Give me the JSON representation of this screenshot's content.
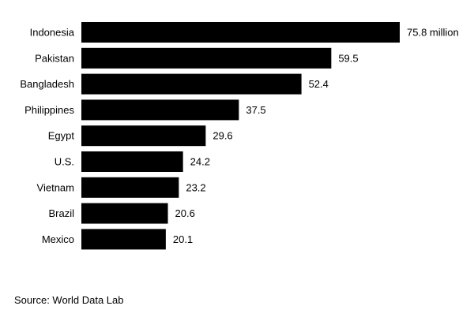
{
  "chart_data": {
    "type": "bar",
    "orientation": "horizontal",
    "categories": [
      "Indonesia",
      "Pakistan",
      "Bangladesh",
      "Philippines",
      "Egypt",
      "U.S.",
      "Vietnam",
      "Brazil",
      "Mexico"
    ],
    "values": [
      75.8,
      59.5,
      52.4,
      37.5,
      29.6,
      24.2,
      23.2,
      20.6,
      20.1
    ],
    "value_labels": [
      "75.8 million",
      "59.5",
      "52.4",
      "37.5",
      "29.6",
      "24.2",
      "23.2",
      "20.6",
      "20.1"
    ],
    "bar_color": "#000000",
    "xlim": [
      0,
      75.8
    ],
    "grid": false,
    "legend": "none"
  },
  "source": "Source: World Data Lab"
}
